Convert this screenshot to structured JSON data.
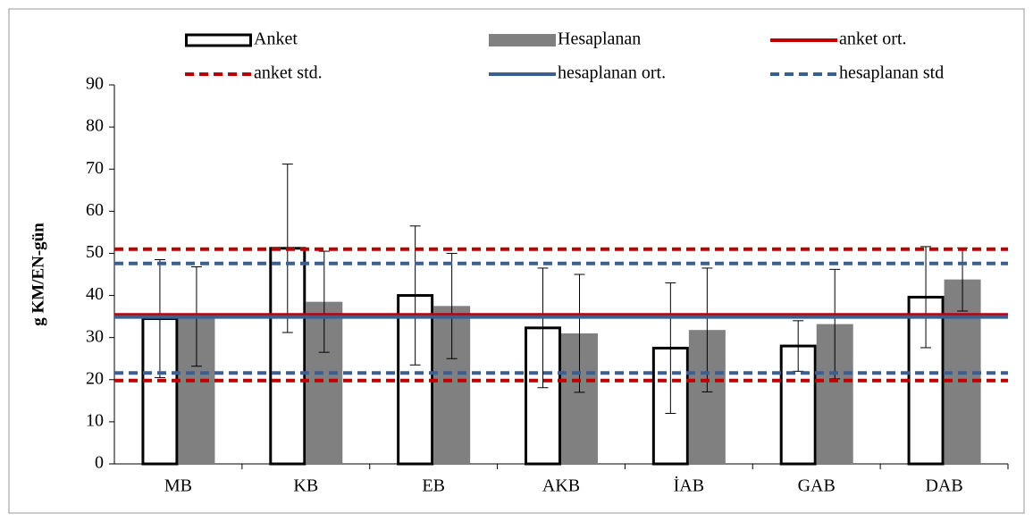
{
  "chart_data": {
    "type": "bar",
    "y_label": "g KM/EN-gün",
    "categories": [
      "MB",
      "KB",
      "EB",
      "AKB",
      "İAB",
      "GAB",
      "DAB"
    ],
    "series": [
      {
        "name": "Anket",
        "color": "#ffffff",
        "values": [
          34.5,
          51.2,
          40,
          32.3,
          27.5,
          28,
          39.6
        ],
        "errors": [
          14,
          20,
          16.5,
          14.2,
          15.5,
          6,
          12
        ]
      },
      {
        "name": "Hesaplanan",
        "color": "#808080",
        "values": [
          35,
          38.5,
          37.5,
          31,
          31.8,
          33.2,
          43.8
        ],
        "errors": [
          11.8,
          12,
          12.5,
          14,
          14.7,
          13,
          7.5
        ]
      }
    ],
    "reference_lines": [
      {
        "name": "anket ort.",
        "color": "#c00000",
        "dashed": false,
        "values": [
          35.4
        ]
      },
      {
        "name": "anket std.",
        "color": "#c00000",
        "dashed": true,
        "values": [
          51,
          19.8
        ]
      },
      {
        "name": "hesaplanan ort.",
        "color": "#3a5f96",
        "dashed": false,
        "values": [
          34.9
        ]
      },
      {
        "name": "hesaplanan std",
        "color": "#3a5f96",
        "dashed": true,
        "values": [
          47.6,
          21.6
        ]
      }
    ],
    "ylim": [
      0,
      90
    ],
    "yticks": [
      0,
      10,
      20,
      30,
      40,
      50,
      60,
      70,
      80,
      90
    ]
  }
}
